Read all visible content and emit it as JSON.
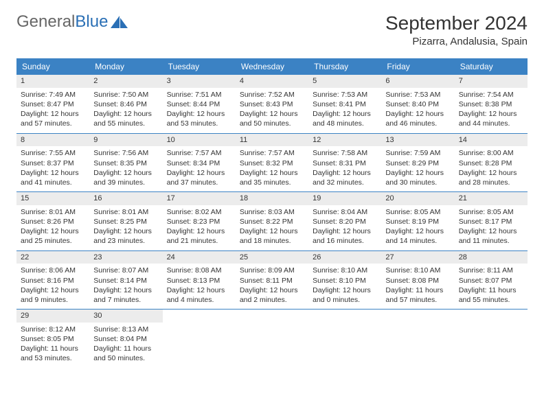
{
  "logo": {
    "part1": "General",
    "part2": "Blue"
  },
  "title": "September 2024",
  "location": "Pizarra, Andalusia, Spain",
  "colors": {
    "header_bg": "#3b82c4",
    "header_text": "#ffffff",
    "daynum_bg": "#ececec",
    "divider": "#3b82c4",
    "text": "#333333",
    "logo_gray": "#666666",
    "logo_blue": "#2a6fb5"
  },
  "day_names": [
    "Sunday",
    "Monday",
    "Tuesday",
    "Wednesday",
    "Thursday",
    "Friday",
    "Saturday"
  ],
  "days": [
    {
      "n": 1,
      "sr": "7:49 AM",
      "ss": "8:47 PM",
      "dl": "12 hours and 57 minutes."
    },
    {
      "n": 2,
      "sr": "7:50 AM",
      "ss": "8:46 PM",
      "dl": "12 hours and 55 minutes."
    },
    {
      "n": 3,
      "sr": "7:51 AM",
      "ss": "8:44 PM",
      "dl": "12 hours and 53 minutes."
    },
    {
      "n": 4,
      "sr": "7:52 AM",
      "ss": "8:43 PM",
      "dl": "12 hours and 50 minutes."
    },
    {
      "n": 5,
      "sr": "7:53 AM",
      "ss": "8:41 PM",
      "dl": "12 hours and 48 minutes."
    },
    {
      "n": 6,
      "sr": "7:53 AM",
      "ss": "8:40 PM",
      "dl": "12 hours and 46 minutes."
    },
    {
      "n": 7,
      "sr": "7:54 AM",
      "ss": "8:38 PM",
      "dl": "12 hours and 44 minutes."
    },
    {
      "n": 8,
      "sr": "7:55 AM",
      "ss": "8:37 PM",
      "dl": "12 hours and 41 minutes."
    },
    {
      "n": 9,
      "sr": "7:56 AM",
      "ss": "8:35 PM",
      "dl": "12 hours and 39 minutes."
    },
    {
      "n": 10,
      "sr": "7:57 AM",
      "ss": "8:34 PM",
      "dl": "12 hours and 37 minutes."
    },
    {
      "n": 11,
      "sr": "7:57 AM",
      "ss": "8:32 PM",
      "dl": "12 hours and 35 minutes."
    },
    {
      "n": 12,
      "sr": "7:58 AM",
      "ss": "8:31 PM",
      "dl": "12 hours and 32 minutes."
    },
    {
      "n": 13,
      "sr": "7:59 AM",
      "ss": "8:29 PM",
      "dl": "12 hours and 30 minutes."
    },
    {
      "n": 14,
      "sr": "8:00 AM",
      "ss": "8:28 PM",
      "dl": "12 hours and 28 minutes."
    },
    {
      "n": 15,
      "sr": "8:01 AM",
      "ss": "8:26 PM",
      "dl": "12 hours and 25 minutes."
    },
    {
      "n": 16,
      "sr": "8:01 AM",
      "ss": "8:25 PM",
      "dl": "12 hours and 23 minutes."
    },
    {
      "n": 17,
      "sr": "8:02 AM",
      "ss": "8:23 PM",
      "dl": "12 hours and 21 minutes."
    },
    {
      "n": 18,
      "sr": "8:03 AM",
      "ss": "8:22 PM",
      "dl": "12 hours and 18 minutes."
    },
    {
      "n": 19,
      "sr": "8:04 AM",
      "ss": "8:20 PM",
      "dl": "12 hours and 16 minutes."
    },
    {
      "n": 20,
      "sr": "8:05 AM",
      "ss": "8:19 PM",
      "dl": "12 hours and 14 minutes."
    },
    {
      "n": 21,
      "sr": "8:05 AM",
      "ss": "8:17 PM",
      "dl": "12 hours and 11 minutes."
    },
    {
      "n": 22,
      "sr": "8:06 AM",
      "ss": "8:16 PM",
      "dl": "12 hours and 9 minutes."
    },
    {
      "n": 23,
      "sr": "8:07 AM",
      "ss": "8:14 PM",
      "dl": "12 hours and 7 minutes."
    },
    {
      "n": 24,
      "sr": "8:08 AM",
      "ss": "8:13 PM",
      "dl": "12 hours and 4 minutes."
    },
    {
      "n": 25,
      "sr": "8:09 AM",
      "ss": "8:11 PM",
      "dl": "12 hours and 2 minutes."
    },
    {
      "n": 26,
      "sr": "8:10 AM",
      "ss": "8:10 PM",
      "dl": "12 hours and 0 minutes."
    },
    {
      "n": 27,
      "sr": "8:10 AM",
      "ss": "8:08 PM",
      "dl": "11 hours and 57 minutes."
    },
    {
      "n": 28,
      "sr": "8:11 AM",
      "ss": "8:07 PM",
      "dl": "11 hours and 55 minutes."
    },
    {
      "n": 29,
      "sr": "8:12 AM",
      "ss": "8:05 PM",
      "dl": "11 hours and 53 minutes."
    },
    {
      "n": 30,
      "sr": "8:13 AM",
      "ss": "8:04 PM",
      "dl": "11 hours and 50 minutes."
    }
  ],
  "labels": {
    "sunrise": "Sunrise:",
    "sunset": "Sunset:",
    "daylight": "Daylight:"
  },
  "layout": {
    "first_weekday_index": 0,
    "cols": 7
  }
}
